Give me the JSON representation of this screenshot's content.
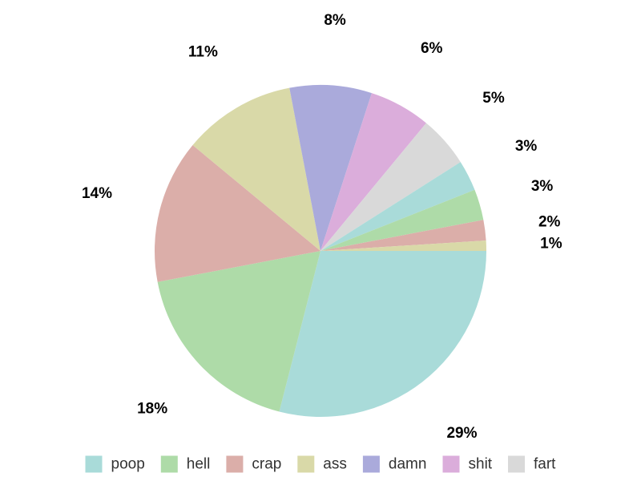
{
  "chart_data": {
    "type": "pie",
    "title": "",
    "legend_position": "bottom",
    "slices": [
      {
        "label": "poop",
        "value": 29,
        "display": "29%",
        "color": "#a9dbd9"
      },
      {
        "label": "hell",
        "value": 18,
        "display": "18%",
        "color": "#aedba8"
      },
      {
        "label": "crap",
        "value": 14,
        "display": "14%",
        "color": "#dbaea9"
      },
      {
        "label": "ass",
        "value": 11,
        "display": "11%",
        "color": "#d9d9a8"
      },
      {
        "label": "damn",
        "value": 8,
        "display": "8%",
        "color": "#aaaadb"
      },
      {
        "label": "shit",
        "value": 6,
        "display": "6%",
        "color": "#dbaddb"
      },
      {
        "label": "fart",
        "value": 5,
        "display": "5%",
        "color": "#d9d9d9"
      },
      {
        "label": "",
        "value": 3,
        "display": "3%",
        "color": "#a9dbd9"
      },
      {
        "label": "",
        "value": 3,
        "display": "3%",
        "color": "#aedba8"
      },
      {
        "label": "",
        "value": 2,
        "display": "2%",
        "color": "#dbaea9"
      },
      {
        "label": "",
        "value": 1,
        "display": "1%",
        "color": "#d9d9a8"
      }
    ],
    "legend": [
      {
        "label": "poop",
        "color": "#a9dbd9"
      },
      {
        "label": "hell",
        "color": "#aedba8"
      },
      {
        "label": "crap",
        "color": "#dbaea9"
      },
      {
        "label": "ass",
        "color": "#d9d9a8"
      },
      {
        "label": "damn",
        "color": "#aaaadb"
      },
      {
        "label": "shit",
        "color": "#dbaddb"
      },
      {
        "label": "fart",
        "color": "#d9d9d9"
      }
    ]
  }
}
